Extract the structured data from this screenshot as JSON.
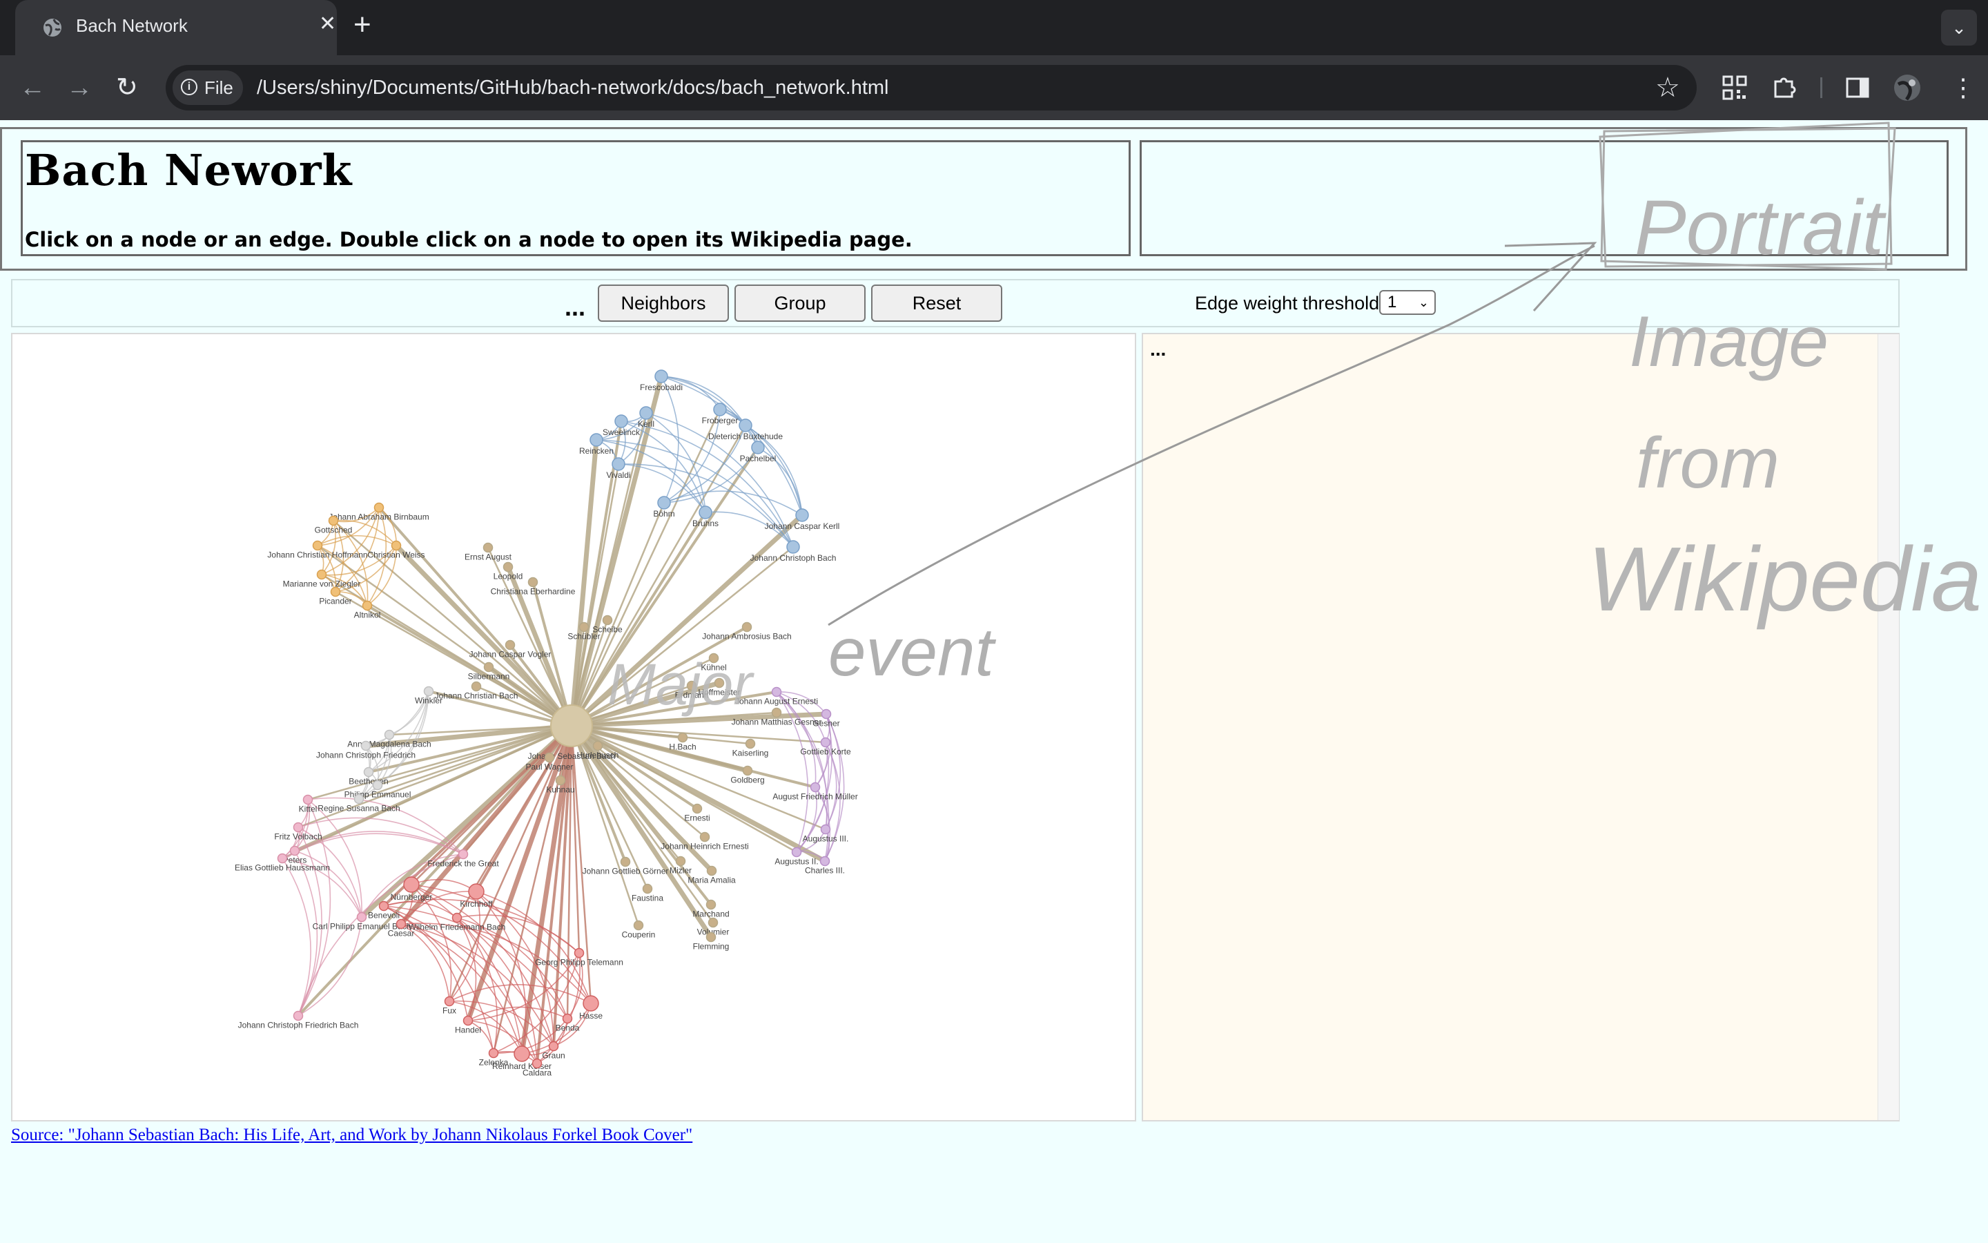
{
  "browser": {
    "tab_title": "Bach Network",
    "tab_close": "✕",
    "new_tab": "+",
    "tab_menu": "⌄",
    "file_chip": "File",
    "url": "/Users/shiny/Documents/GitHub/bach-network/docs/bach_network.html"
  },
  "header": {
    "title": "Bach Nework",
    "subtitle": "Click on a node or an edge. Double click on a node to open its Wikipedia page."
  },
  "controls": {
    "ellipsis": "...",
    "neighbors_label": "Neighbors",
    "group_label": "Group",
    "reset_label": "Reset",
    "threshold_label": "Edge weight threshold:",
    "threshold_value": "1"
  },
  "info_panel": {
    "ellipsis": "..."
  },
  "annotations": {
    "portrait": "Portrait",
    "image": "Image",
    "from": "from",
    "wikipedia": "Wikipedia",
    "major": "Major",
    "event": "event"
  },
  "source_link": "Source: \"Johann Sebastian Bach: His Life, Art, and Work by Johann Nikolaus Forkel Book Cover\"",
  "colors": {
    "center": "#d7c9a8",
    "tan": "#c8b08a",
    "blue": "#a8c4e0",
    "orange": "#f0c078",
    "purple": "#d4b8e0",
    "red": "#f0a0a0",
    "pink": "#f0b8cc",
    "grey": "#dcdcdc"
  },
  "graph": {
    "center": {
      "label": "Johann Sebastian Bach"
    },
    "nodes": [
      {
        "label": "Frescobaldi",
        "group": "blue"
      },
      {
        "label": "Kerll",
        "group": "blue"
      },
      {
        "label": "Froberger",
        "group": "blue"
      },
      {
        "label": "Sweelinck",
        "group": "blue"
      },
      {
        "label": "Dieterich Buxtehude",
        "group": "blue"
      },
      {
        "label": "Reincken",
        "group": "blue"
      },
      {
        "label": "Pachelbel",
        "group": "blue"
      },
      {
        "label": "Vivaldi",
        "group": "blue"
      },
      {
        "label": "Böhm",
        "group": "blue"
      },
      {
        "label": "Bruhns",
        "group": "blue"
      },
      {
        "label": "Johann Caspar Kerll",
        "group": "blue"
      },
      {
        "label": "Johann Christoph Bach",
        "group": "blue"
      },
      {
        "label": "Johann Abraham Birnbaum",
        "group": "orange"
      },
      {
        "label": "Gottsched",
        "group": "orange"
      },
      {
        "label": "Johann Christian Hoffmann",
        "group": "orange"
      },
      {
        "label": "Christian Weiss",
        "group": "orange"
      },
      {
        "label": "Marianne von Ziegler",
        "group": "orange"
      },
      {
        "label": "Picander",
        "group": "orange"
      },
      {
        "label": "Altnikol",
        "group": "orange"
      },
      {
        "label": "Ernst August",
        "group": "tan"
      },
      {
        "label": "Leopold",
        "group": "tan"
      },
      {
        "label": "Christiana Eberhardine",
        "group": "tan"
      },
      {
        "label": "Scheibe",
        "group": "tan"
      },
      {
        "label": "Schübler",
        "group": "tan"
      },
      {
        "label": "Johann Caspar Vogler",
        "group": "tan"
      },
      {
        "label": "Silbermann",
        "group": "tan"
      },
      {
        "label": "Johann Christian Bach",
        "group": "tan"
      },
      {
        "label": "Johann Ambrosius Bach",
        "group": "tan"
      },
      {
        "label": "Kühnel",
        "group": "tan"
      },
      {
        "label": "Erdmann",
        "group": "tan"
      },
      {
        "label": "Hoffmeister",
        "group": "tan"
      },
      {
        "label": "Johann Matthias Gesner",
        "group": "tan"
      },
      {
        "label": "Hurlebusch",
        "group": "tan"
      },
      {
        "label": "H.Bach",
        "group": "tan"
      },
      {
        "label": "Kaiserling",
        "group": "tan"
      },
      {
        "label": "Goldberg",
        "group": "tan"
      },
      {
        "label": "Ernesti",
        "group": "tan"
      },
      {
        "label": "Johann Heinrich Ernesti",
        "group": "tan"
      },
      {
        "label": "Mizler",
        "group": "tan"
      },
      {
        "label": "Johann Gottlieb Görner",
        "group": "tan"
      },
      {
        "label": "Maria Amalia",
        "group": "tan"
      },
      {
        "label": "Faustina",
        "group": "tan"
      },
      {
        "label": "Marchand",
        "group": "tan"
      },
      {
        "label": "Couperin",
        "group": "tan"
      },
      {
        "label": "Volumier",
        "group": "tan"
      },
      {
        "label": "Flemming",
        "group": "tan"
      },
      {
        "label": "Kuhnau",
        "group": "tan"
      },
      {
        "label": "Paul Wagner",
        "group": "tan"
      },
      {
        "label": "Winkler",
        "group": "grey"
      },
      {
        "label": "Anna Magdalena Bach",
        "group": "grey"
      },
      {
        "label": "Johann Christoph Friedrich",
        "group": "grey"
      },
      {
        "label": "Beethoven",
        "group": "grey"
      },
      {
        "label": "Philipp Emmanuel",
        "group": "grey"
      },
      {
        "label": "Regine Susanna Bach",
        "group": "grey"
      },
      {
        "label": "Johann August Ernesti",
        "group": "purple"
      },
      {
        "label": "Gesner",
        "group": "purple"
      },
      {
        "label": "Gottlieb Korte",
        "group": "purple"
      },
      {
        "label": "August Friedrich Müller",
        "group": "purple"
      },
      {
        "label": "Augustus III.",
        "group": "purple"
      },
      {
        "label": "Augustus II.",
        "group": "purple"
      },
      {
        "label": "Charles III.",
        "group": "purple"
      },
      {
        "label": "Kittel",
        "group": "pink"
      },
      {
        "label": "Fritz Volbach",
        "group": "pink"
      },
      {
        "label": "Peters",
        "group": "pink"
      },
      {
        "label": "Elias Gottlieb Haussmann",
        "group": "pink"
      },
      {
        "label": "Carl Philipp Emanuel Bach",
        "group": "pink"
      },
      {
        "label": "Johann Christoph Friedrich Bach",
        "group": "pink"
      },
      {
        "label": "Frederick the Great",
        "group": "pink"
      },
      {
        "label": "Nürnberger",
        "group": "red"
      },
      {
        "label": "Benevoli",
        "group": "red"
      },
      {
        "label": "Caesar",
        "group": "red"
      },
      {
        "label": "Wilhelm Friedemann Bach",
        "group": "red"
      },
      {
        "label": "Kirchhoff",
        "group": "red"
      },
      {
        "label": "Georg Philipp Telemann",
        "group": "red"
      },
      {
        "label": "Fux",
        "group": "red"
      },
      {
        "label": "Handel",
        "group": "red"
      },
      {
        "label": "Hasse",
        "group": "red"
      },
      {
        "label": "Benda",
        "group": "red"
      },
      {
        "label": "Graun",
        "group": "red"
      },
      {
        "label": "Zelenka",
        "group": "red"
      },
      {
        "label": "Reinhard Keiser",
        "group": "red"
      },
      {
        "label": "Caldara",
        "group": "red"
      }
    ]
  }
}
